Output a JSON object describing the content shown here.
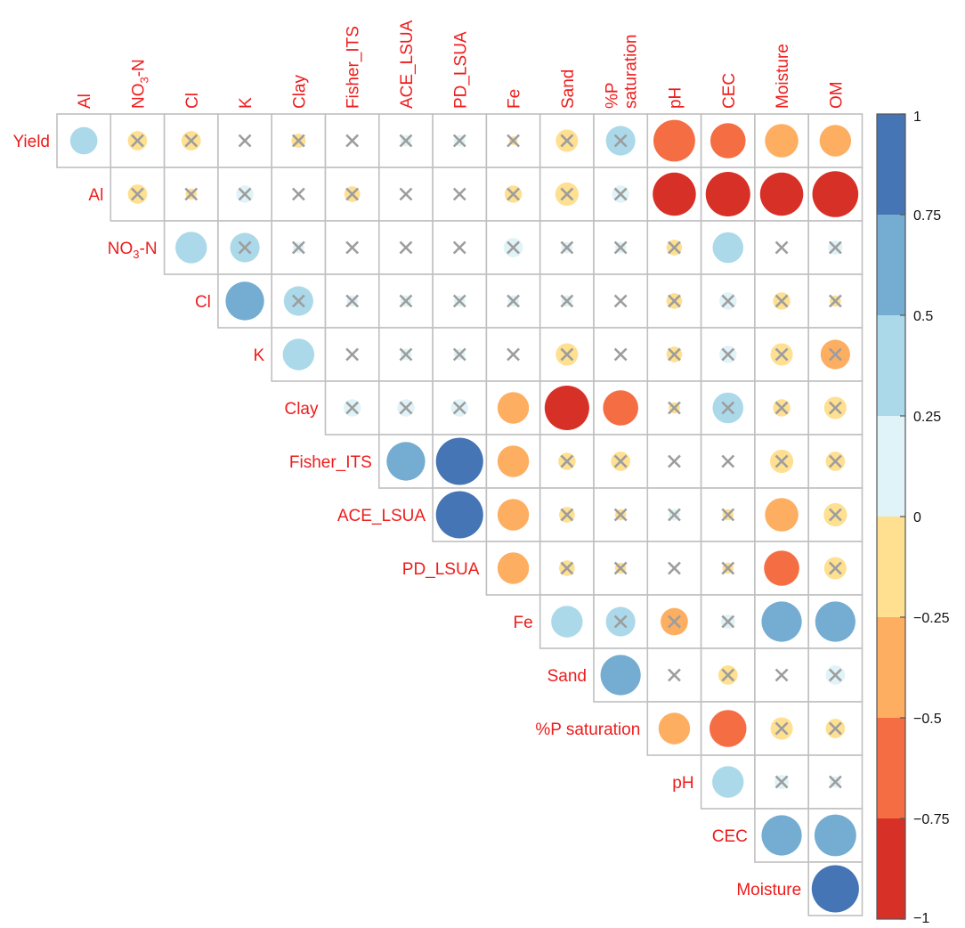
{
  "chart_data": {
    "type": "heatmap",
    "title": "",
    "method": "circle",
    "matrix_type": "upper-triangle",
    "cross_marks_insignificant": true,
    "rows": [
      {
        "label": "Yield",
        "sub": ""
      },
      {
        "label": "Al",
        "sub": ""
      },
      {
        "label": "NO",
        "sub": "3",
        "suffix": "-N"
      },
      {
        "label": "Cl",
        "sub": ""
      },
      {
        "label": "K",
        "sub": ""
      },
      {
        "label": "Clay",
        "sub": ""
      },
      {
        "label": "Fisher_ITS",
        "sub": ""
      },
      {
        "label": "ACE_LSUA",
        "sub": ""
      },
      {
        "label": "PD_LSUA",
        "sub": ""
      },
      {
        "label": "Fe",
        "sub": ""
      },
      {
        "label": "Sand",
        "sub": ""
      },
      {
        "label": "%P saturation",
        "sub": ""
      },
      {
        "label": "pH",
        "sub": ""
      },
      {
        "label": "CEC",
        "sub": ""
      },
      {
        "label": "Moisture",
        "sub": ""
      }
    ],
    "columns": [
      {
        "lines": [
          "Al"
        ]
      },
      {
        "lines": [
          "NO3-N"
        ]
      },
      {
        "lines": [
          "Cl"
        ]
      },
      {
        "lines": [
          "K"
        ]
      },
      {
        "lines": [
          "Clay"
        ]
      },
      {
        "lines": [
          "Fisher_ITS"
        ]
      },
      {
        "lines": [
          "ACE_LSUA"
        ]
      },
      {
        "lines": [
          "PD_LSUA"
        ]
      },
      {
        "lines": [
          "Fe"
        ]
      },
      {
        "lines": [
          "Sand"
        ]
      },
      {
        "lines": [
          "%P",
          "saturation"
        ]
      },
      {
        "lines": [
          "pH"
        ]
      },
      {
        "lines": [
          "CEC"
        ]
      },
      {
        "lines": [
          "Moisture"
        ]
      },
      {
        "lines": [
          "OM"
        ]
      }
    ],
    "values": [
      [
        0.3,
        -0.15,
        -0.15,
        0.0,
        -0.08,
        0.0,
        0.05,
        0.05,
        -0.03,
        -0.2,
        0.35,
        -0.7,
        -0.5,
        -0.45,
        -0.4
      ],
      [
        null,
        -0.15,
        -0.05,
        0.12,
        0.0,
        -0.1,
        0.0,
        0.0,
        -0.12,
        -0.22,
        0.12,
        -0.75,
        -0.8,
        -0.75,
        -0.85
      ],
      [
        null,
        null,
        0.4,
        0.35,
        0.05,
        0.0,
        0.0,
        0.0,
        0.15,
        0.05,
        0.05,
        -0.1,
        0.38,
        0.0,
        0.08
      ],
      [
        null,
        null,
        null,
        0.6,
        0.35,
        0.05,
        0.05,
        0.05,
        0.05,
        0.05,
        0.0,
        -0.1,
        0.12,
        -0.12,
        -0.05
      ],
      [
        null,
        null,
        null,
        null,
        0.4,
        0.0,
        0.05,
        0.05,
        0.0,
        -0.2,
        0.0,
        -0.1,
        0.12,
        -0.2,
        -0.35
      ],
      [
        null,
        null,
        null,
        null,
        null,
        0.12,
        0.12,
        0.12,
        -0.4,
        -0.8,
        -0.5,
        -0.05,
        0.38,
        -0.12,
        -0.2
      ],
      [
        null,
        null,
        null,
        null,
        null,
        null,
        0.6,
        0.9,
        -0.4,
        -0.12,
        -0.15,
        0.0,
        0.0,
        -0.22,
        -0.15
      ],
      [
        null,
        null,
        null,
        null,
        null,
        null,
        null,
        0.9,
        -0.4,
        -0.1,
        -0.05,
        0.05,
        -0.05,
        -0.45,
        -0.22
      ],
      [
        null,
        null,
        null,
        null,
        null,
        null,
        null,
        null,
        -0.4,
        -0.1,
        -0.05,
        0.0,
        -0.05,
        -0.5,
        -0.2
      ],
      [
        null,
        null,
        null,
        null,
        null,
        null,
        null,
        null,
        null,
        0.4,
        0.35,
        -0.3,
        0.08,
        0.65,
        0.65
      ],
      [
        null,
        null,
        null,
        null,
        null,
        null,
        null,
        null,
        null,
        null,
        0.65,
        0.0,
        -0.15,
        0.0,
        0.15
      ],
      [
        null,
        null,
        null,
        null,
        null,
        null,
        null,
        null,
        null,
        null,
        null,
        -0.4,
        -0.55,
        -0.2,
        -0.15
      ],
      [
        null,
        null,
        null,
        null,
        null,
        null,
        null,
        null,
        null,
        null,
        null,
        null,
        0.4,
        0.08,
        0.05
      ],
      [
        null,
        null,
        null,
        null,
        null,
        null,
        null,
        null,
        null,
        null,
        null,
        null,
        null,
        0.65,
        0.7
      ],
      [
        null,
        null,
        null,
        null,
        null,
        null,
        null,
        null,
        null,
        null,
        null,
        null,
        null,
        null,
        0.9
      ]
    ],
    "insignificant": [
      [
        false,
        true,
        true,
        true,
        true,
        true,
        true,
        true,
        true,
        true,
        true,
        false,
        false,
        false,
        false
      ],
      [
        null,
        true,
        true,
        true,
        true,
        true,
        true,
        true,
        true,
        true,
        true,
        false,
        false,
        false,
        false
      ],
      [
        null,
        null,
        false,
        true,
        true,
        true,
        true,
        true,
        true,
        true,
        true,
        true,
        false,
        true,
        true
      ],
      [
        null,
        null,
        null,
        false,
        true,
        true,
        true,
        true,
        true,
        true,
        true,
        true,
        true,
        true,
        true
      ],
      [
        null,
        null,
        null,
        null,
        false,
        true,
        true,
        true,
        true,
        true,
        true,
        true,
        true,
        true,
        true
      ],
      [
        null,
        null,
        null,
        null,
        null,
        true,
        true,
        true,
        false,
        false,
        false,
        true,
        true,
        true,
        true
      ],
      [
        null,
        null,
        null,
        null,
        null,
        null,
        false,
        false,
        false,
        true,
        true,
        true,
        true,
        true,
        true
      ],
      [
        null,
        null,
        null,
        null,
        null,
        null,
        null,
        false,
        false,
        true,
        true,
        true,
        true,
        false,
        true
      ],
      [
        null,
        null,
        null,
        null,
        null,
        null,
        null,
        null,
        false,
        true,
        true,
        true,
        true,
        false,
        true
      ],
      [
        null,
        null,
        null,
        null,
        null,
        null,
        null,
        null,
        null,
        false,
        true,
        true,
        true,
        false,
        false
      ],
      [
        null,
        null,
        null,
        null,
        null,
        null,
        null,
        null,
        null,
        null,
        false,
        true,
        true,
        true,
        true
      ],
      [
        null,
        null,
        null,
        null,
        null,
        null,
        null,
        null,
        null,
        null,
        null,
        false,
        false,
        true,
        true
      ],
      [
        null,
        null,
        null,
        null,
        null,
        null,
        null,
        null,
        null,
        null,
        null,
        null,
        false,
        true,
        true
      ],
      [
        null,
        null,
        null,
        null,
        null,
        null,
        null,
        null,
        null,
        null,
        null,
        null,
        null,
        false,
        false
      ],
      [
        null,
        null,
        null,
        null,
        null,
        null,
        null,
        null,
        null,
        null,
        null,
        null,
        null,
        null,
        false
      ]
    ],
    "colorbar": {
      "range": [
        -1,
        1
      ],
      "ticks": [
        1,
        0.75,
        0.5,
        0.25,
        0,
        -0.25,
        -0.5,
        -0.75,
        -1
      ],
      "tick_labels": [
        "1",
        "0.75",
        "0.5",
        "0.25",
        "0",
        "−0.25",
        "−0.5",
        "−0.75",
        "−1"
      ],
      "colors_top_to_bottom": [
        "#4575b4",
        "#74add1",
        "#abd9e9",
        "#e0f3f8",
        "#fee090",
        "#fdae61",
        "#f46d43",
        "#d73027"
      ]
    },
    "label_color": "#ee1c1c",
    "grid_color": "#c0c0c0",
    "cross_color": "#9d9d9d"
  }
}
